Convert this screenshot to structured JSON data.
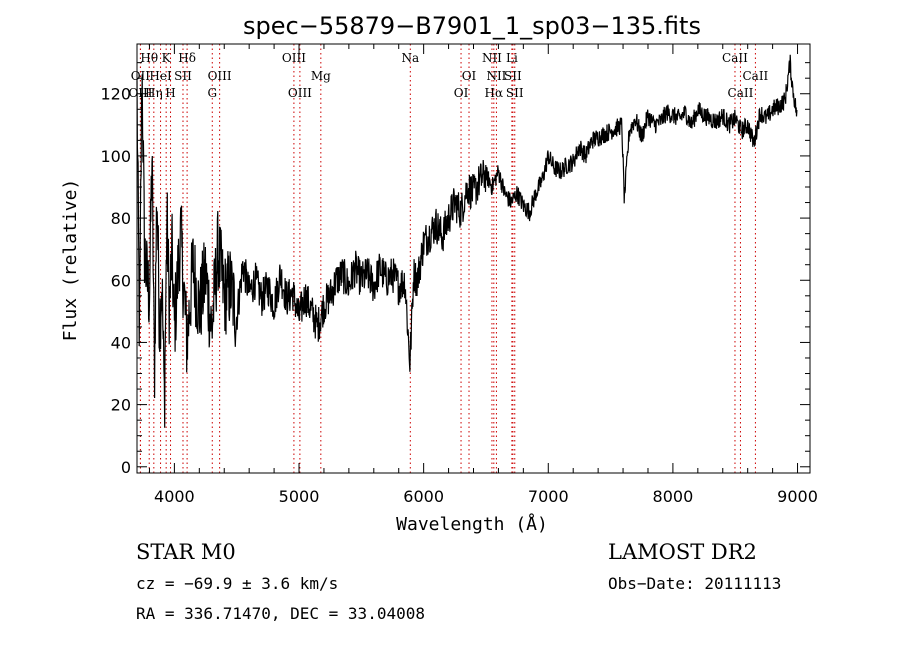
{
  "chart_data": {
    "type": "line",
    "title": "spec−55879−B7901_1_sp03−135.fits",
    "xlabel": "Wavelength (Å)",
    "ylabel": "Flux (relative)",
    "xlim": [
      3700,
      9100
    ],
    "ylim": [
      -2,
      136
    ],
    "xticks": [
      4000,
      5000,
      6000,
      7000,
      8000,
      9000
    ],
    "yticks": [
      0,
      20,
      40,
      60,
      80,
      100,
      120
    ],
    "grid": false,
    "series": [
      {
        "x": [
          3700,
          3720,
          3740,
          3760,
          3780,
          3800,
          3820,
          3840,
          3860,
          3880,
          3900,
          3920,
          3940,
          3960,
          3980,
          4000,
          4050,
          4100,
          4150,
          4200,
          4250,
          4300,
          4350,
          4400,
          4450,
          4500,
          4550,
          4600,
          4650,
          4700,
          4750,
          4800,
          4850,
          4900,
          4950,
          5000,
          5050,
          5100,
          5150,
          5200,
          5250,
          5300,
          5350,
          5400,
          5450,
          5500,
          5550,
          5600,
          5650,
          5700,
          5750,
          5800,
          5850,
          5890,
          5920,
          5950,
          6000,
          6050,
          6100,
          6150,
          6200,
          6250,
          6300,
          6350,
          6400,
          6450,
          6500,
          6550,
          6600,
          6650,
          6700,
          6750,
          6800,
          6850,
          6900,
          6950,
          7000,
          7050,
          7100,
          7150,
          7200,
          7250,
          7300,
          7350,
          7400,
          7450,
          7500,
          7550,
          7590,
          7610,
          7650,
          7700,
          7750,
          7800,
          7850,
          7900,
          7950,
          8000,
          8050,
          8100,
          8150,
          8200,
          8250,
          8300,
          8350,
          8400,
          8450,
          8500,
          8550,
          8600,
          8650,
          8700,
          8750,
          8800,
          8850,
          8900,
          8940,
          8960,
          9000
        ],
        "values": [
          120,
          40,
          130,
          70,
          60,
          55,
          100,
          30,
          90,
          45,
          60,
          20,
          80,
          50,
          70,
          45,
          75,
          40,
          65,
          50,
          62,
          44,
          70,
          55,
          58,
          48,
          65,
          56,
          60,
          54,
          58,
          52,
          62,
          54,
          56,
          48,
          55,
          50,
          45,
          52,
          55,
          60,
          62,
          58,
          64,
          60,
          62,
          58,
          64,
          60,
          62,
          58,
          60,
          33,
          62,
          60,
          72,
          75,
          78,
          74,
          80,
          85,
          82,
          90,
          88,
          92,
          94,
          90,
          95,
          88,
          85,
          88,
          84,
          82,
          88,
          92,
          100,
          96,
          95,
          97,
          98,
          103,
          100,
          105,
          106,
          107,
          108,
          109,
          110,
          86,
          108,
          112,
          106,
          113,
          110,
          111,
          114,
          113,
          112,
          114,
          110,
          115,
          113,
          112,
          111,
          113,
          110,
          112,
          108,
          110,
          104,
          114,
          112,
          115,
          116,
          118,
          130,
          122,
          112
        ]
      }
    ],
    "lines": [
      {
        "label": "Hθ",
        "x": 3798,
        "row": 0
      },
      {
        "label": "K",
        "x": 3934,
        "row": 0
      },
      {
        "label": "Hδ",
        "x": 4102,
        "row": 0
      },
      {
        "label": "OII",
        "x": 3727,
        "row": 1
      },
      {
        "label": "HeI",
        "x": 3889,
        "row": 1
      },
      {
        "label": "SII",
        "x": 4069,
        "row": 1
      },
      {
        "label": "OIII",
        "x": 4363,
        "row": 1
      },
      {
        "label": "OIII",
        "x": 3728,
        "row": 2
      },
      {
        "label": "Hη",
        "x": 3835,
        "row": 2
      },
      {
        "label": "H",
        "x": 3969,
        "row": 2
      },
      {
        "label": "G",
        "x": 4304,
        "row": 2
      },
      {
        "label": "OIII",
        "x": 4959,
        "row": 0
      },
      {
        "label": "Mg",
        "x": 5175,
        "row": 1
      },
      {
        "label": "OIII",
        "x": 5007,
        "row": 2
      },
      {
        "label": "Na",
        "x": 5893,
        "row": 0
      },
      {
        "label": "OI",
        "x": 6364,
        "row": 1
      },
      {
        "label": "OI",
        "x": 6300,
        "row": 2
      },
      {
        "label": "NII",
        "x": 6548,
        "row": 0
      },
      {
        "label": "Li",
        "x": 6708,
        "row": 0
      },
      {
        "label": "NII",
        "x": 6584,
        "row": 1
      },
      {
        "label": "SII",
        "x": 6716,
        "row": 1
      },
      {
        "label": "Hα",
        "x": 6563,
        "row": 2
      },
      {
        "label": "SII",
        "x": 6731,
        "row": 2
      },
      {
        "label": "CaII",
        "x": 8498,
        "row": 0
      },
      {
        "label": "CaII",
        "x": 8662,
        "row": 1
      },
      {
        "label": "CaII",
        "x": 8542,
        "row": 2
      }
    ]
  },
  "info": {
    "class": "STAR    M0",
    "survey": "LAMOST DR2",
    "cz": "cz = −69.9 ± 3.6 km/s",
    "obs_date": "Obs−Date: 20111113",
    "radec": "RA = 336.71470, DEC =  33.04008"
  },
  "colors": {
    "spectrum": "#000000",
    "line_markers": "#cc0000"
  }
}
